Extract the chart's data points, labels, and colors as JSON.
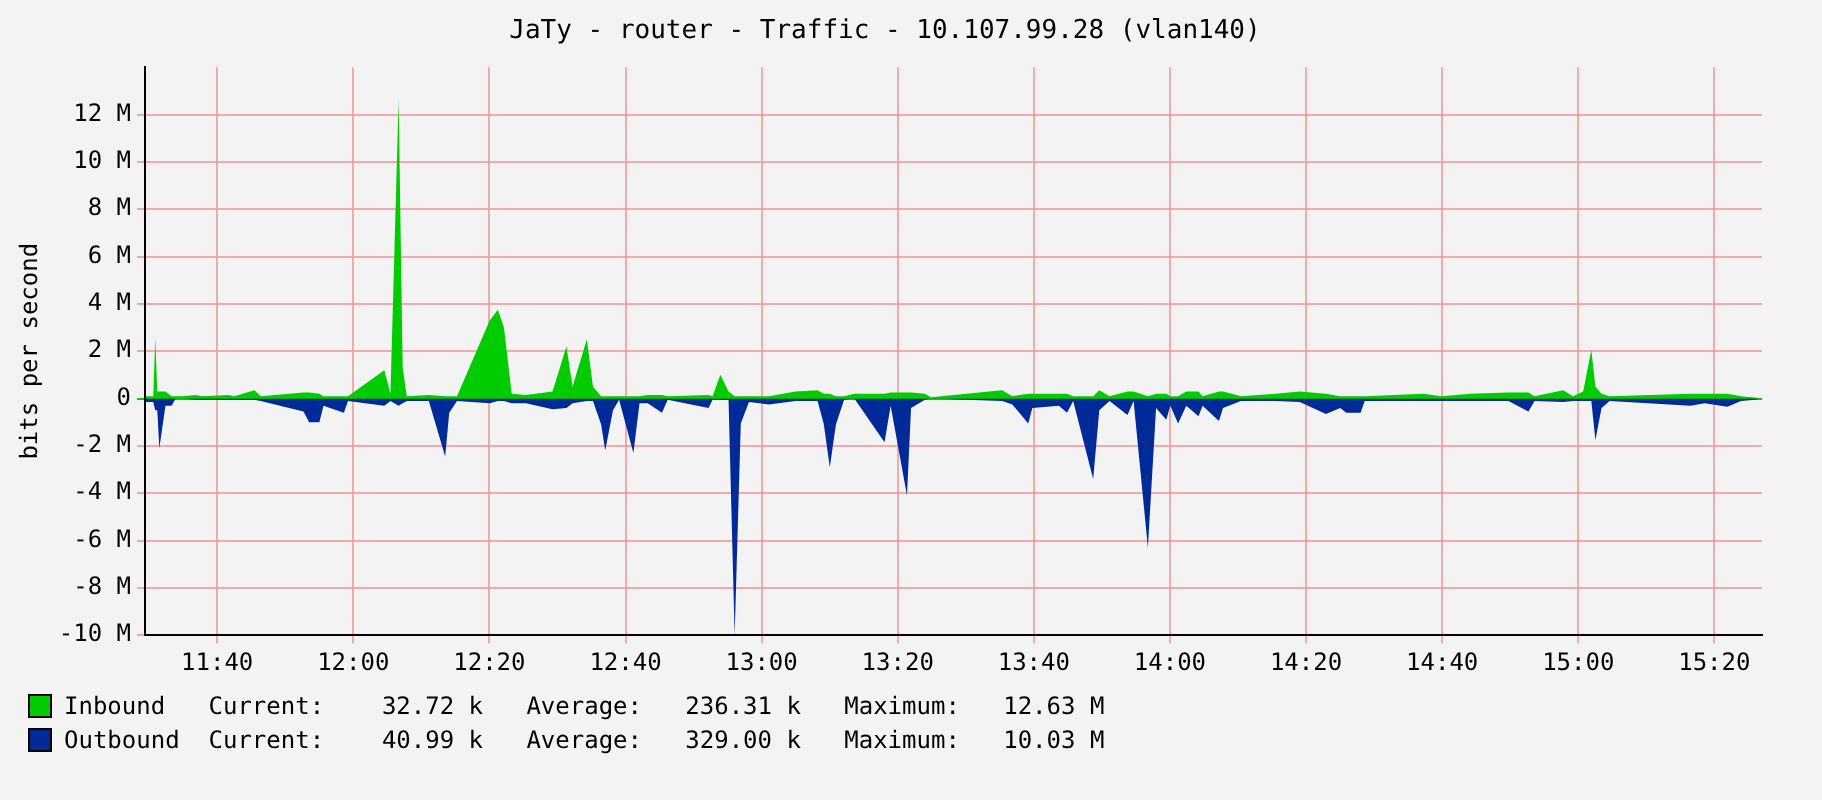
{
  "chart_data": {
    "type": "area",
    "title": "JaTy - router - Traffic - 10.107.99.28 (vlan140)",
    "ylabel": "bits per second",
    "x": [
      11.491,
      11.51,
      11.515,
      11.52,
      11.525,
      11.54,
      11.555,
      11.565,
      11.58,
      11.615,
      11.63,
      11.694,
      11.709,
      11.758,
      11.773,
      11.878,
      11.892,
      11.917,
      11.927,
      11.977,
      11.987,
      12.076,
      12.091,
      12.111,
      12.121,
      12.131,
      12.185,
      12.225,
      12.235,
      12.254,
      12.334,
      12.354,
      12.369,
      12.388,
      12.423,
      12.488,
      12.522,
      12.537,
      12.572,
      12.587,
      12.607,
      12.617,
      12.636,
      12.651,
      12.686,
      12.701,
      12.721,
      12.756,
      12.77,
      12.87,
      12.88,
      12.899,
      12.919,
      12.934,
      12.949,
      12.969,
      13.018,
      13.083,
      13.137,
      13.152,
      13.167,
      13.182,
      13.202,
      13.227,
      13.301,
      13.316,
      13.356,
      13.366,
      13.4,
      13.415,
      13.589,
      13.614,
      13.653,
      13.663,
      13.728,
      13.748,
      13.763,
      13.812,
      13.827,
      13.852,
      13.896,
      13.911,
      13.946,
      13.966,
      13.991,
      14.001,
      14.02,
      14.04,
      14.07,
      14.08,
      14.12,
      14.13,
      14.174,
      14.259,
      14.318,
      14.382,
      14.417,
      14.432,
      14.467,
      14.477,
      14.621,
      14.665,
      14.735,
      14.829,
      14.878,
      14.893,
      14.963,
      14.987,
      15.012,
      15.032,
      15.042,
      15.057,
      15.077,
      15.275,
      15.31,
      15.365,
      15.399,
      15.439
    ],
    "series": [
      {
        "name": "Inbound",
        "color": "#00cc00",
        "values": [
          0.1,
          0.1,
          2.55,
          0.3,
          0.3,
          0.3,
          0.1,
          0.1,
          0.1,
          0.15,
          0.1,
          0.15,
          0.1,
          0.35,
          0.1,
          0.25,
          0.25,
          0.2,
          0.1,
          0.1,
          0.1,
          1.2,
          0.2,
          12.63,
          1.3,
          0.1,
          0.15,
          0.1,
          0.1,
          0.1,
          3.3,
          3.75,
          3.0,
          0.2,
          0.15,
          0.3,
          2.2,
          0.5,
          2.5,
          0.5,
          0.1,
          0.1,
          0.1,
          0.1,
          0.1,
          0.1,
          0.15,
          0.15,
          0.1,
          0.15,
          0.1,
          1.0,
          0.3,
          0.1,
          0.1,
          0.1,
          0.1,
          0.3,
          0.35,
          0.2,
          0.2,
          0.1,
          0.1,
          0.2,
          0.2,
          0.25,
          0.25,
          0.25,
          0.2,
          0.05,
          0.35,
          0.1,
          0.2,
          0.2,
          0.2,
          0.2,
          0.1,
          0.1,
          0.35,
          0.1,
          0.3,
          0.3,
          0.1,
          0.2,
          0.2,
          0.1,
          0.1,
          0.3,
          0.3,
          0.1,
          0.3,
          0.3,
          0.1,
          0.2,
          0.3,
          0.2,
          0.1,
          0.1,
          0.1,
          0.1,
          0.2,
          0.1,
          0.2,
          0.25,
          0.25,
          0.1,
          0.35,
          0.1,
          0.3,
          2.05,
          0.5,
          0.2,
          0.1,
          0.2,
          0.2,
          0.2,
          0.1,
          0.03
        ]
      },
      {
        "name": "Outbound",
        "color": "#002a97",
        "values": [
          -0.15,
          -0.15,
          -0.5,
          -0.5,
          -2.1,
          -0.3,
          -0.3,
          0,
          0,
          -0.05,
          -0.05,
          -0.05,
          -0.05,
          -0.05,
          -0.1,
          -0.55,
          -1.0,
          -1.0,
          -0.3,
          -0.6,
          -0.1,
          -0.3,
          -0.1,
          -0.3,
          -0.2,
          -0.1,
          -0.1,
          -2.45,
          -0.6,
          -0.1,
          -0.2,
          -0.1,
          -0.1,
          -0.2,
          -0.2,
          -0.45,
          -0.4,
          -0.2,
          -0.1,
          -0.1,
          -1.1,
          -2.2,
          -0.5,
          -0.05,
          -2.3,
          -0.2,
          -0.2,
          -0.6,
          -0.05,
          -0.4,
          -0.05,
          -0.05,
          -0.05,
          -10,
          -1.05,
          -0.15,
          -0.25,
          -0.1,
          -0.1,
          -1.05,
          -2.9,
          -1.1,
          -0.05,
          0,
          -1.85,
          -0.3,
          -4.1,
          -0.4,
          -0.05,
          0,
          -0.1,
          -0.25,
          -1.05,
          -0.4,
          -0.3,
          -0.6,
          -0.1,
          -3.4,
          -0.5,
          -0.1,
          -0.7,
          -0.1,
          -6.3,
          -0.4,
          -0.9,
          -0.3,
          -1.05,
          -0.3,
          -0.75,
          -0.3,
          -0.95,
          -0.4,
          -0.1,
          -0.1,
          -0.15,
          -0.65,
          -0.4,
          -0.6,
          -0.6,
          -0.1,
          -0.1,
          -0.1,
          -0.1,
          -0.1,
          -0.55,
          -0.1,
          -0.15,
          -0.1,
          -0.1,
          -0.1,
          -1.75,
          -0.4,
          -0.1,
          -0.3,
          -0.2,
          -0.35,
          -0.1,
          -0.04
        ]
      }
    ],
    "xlim": [
      11.49,
      15.45
    ],
    "xticks": [
      {
        "value": 11.6667,
        "label": "11:40"
      },
      {
        "value": 12,
        "label": "12:00"
      },
      {
        "value": 12.3333,
        "label": "12:20"
      },
      {
        "value": 12.6667,
        "label": "12:40"
      },
      {
        "value": 13,
        "label": "13:00"
      },
      {
        "value": 13.3333,
        "label": "13:20"
      },
      {
        "value": 13.6667,
        "label": "13:40"
      },
      {
        "value": 14,
        "label": "14:00"
      },
      {
        "value": 14.3333,
        "label": "14:20"
      },
      {
        "value": 14.6667,
        "label": "14:40"
      },
      {
        "value": 15,
        "label": "15:00"
      },
      {
        "value": 15.3333,
        "label": "15:20"
      }
    ],
    "ylim": [
      -10,
      14
    ],
    "yticks": [
      {
        "value": -10,
        "label": "-10 M"
      },
      {
        "value": -8,
        "label": "-8 M"
      },
      {
        "value": -6,
        "label": "-6 M"
      },
      {
        "value": -4,
        "label": "-4 M"
      },
      {
        "value": -2,
        "label": "-2 M"
      },
      0,
      {
        "value": 2,
        "label": "2 M"
      },
      {
        "value": 4,
        "label": "4 M"
      },
      {
        "value": 6,
        "label": "6 M"
      },
      {
        "value": 8,
        "label": "8 M"
      },
      {
        "value": 10,
        "label": "10 M"
      },
      {
        "value": 12,
        "label": "12 M"
      }
    ],
    "grid": true,
    "legend": "bottom",
    "marker": "none",
    "annotations": [
      "Current:    32.72 k   Average:   236.31 k   Maximum:   12.63 M",
      "Current:    40.99 k   Average:   329.00 k   Maximum:   10.03 M"
    ]
  }
}
